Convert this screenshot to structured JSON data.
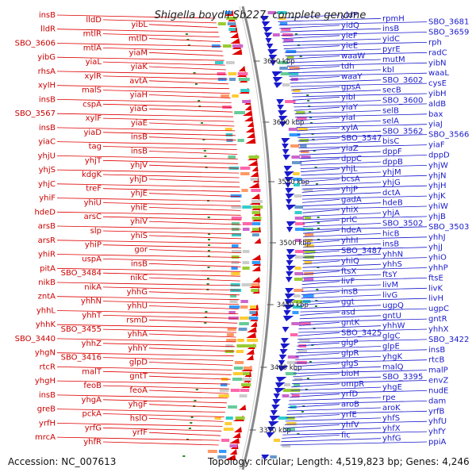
{
  "title": "Shigella boydii Sb227, complete genome",
  "footer": {
    "accession": "Accession: NC_007613",
    "summary": "Topology: circular; Length: 4,519,823 bp; Genes: 4,246"
  },
  "colors": {
    "forward": "#e00000",
    "reverse": "#1a1acc",
    "backbone": "#888888"
  },
  "kbp_labels": [
    "3650 kbp",
    "3600 kbp",
    "3550 kbp",
    "3500 kbp",
    "3450 kbp",
    "3400 kbp",
    "3350 kbp"
  ],
  "genes_left": [
    "insB",
    "lldD",
    "yibL",
    "lldR",
    "mtlR",
    "mtlD",
    "SBO_3606",
    "mtlA",
    "yiaM",
    "yibG",
    "yiaL",
    "yiaK",
    "rhsA",
    "xylR",
    "avtA",
    "xylH",
    "malS",
    "yiaH",
    "insB",
    "cspA",
    "yiaG",
    "SBO_3567",
    "xylF",
    "yiaE",
    "insB",
    "yiaD",
    "insB",
    "yiaC",
    "tag",
    "insB",
    "yhjU",
    "yhjT",
    "yhjV",
    "yhjS",
    "kdgK",
    "yhjD",
    "yhjC",
    "treF",
    "yhjE",
    "yhiF",
    "yhiU",
    "yhiE",
    "hdeD",
    "arsC",
    "yhiV",
    "arsB",
    "slp",
    "yhiS",
    "arsR",
    "yhiP",
    "gor",
    "yhiR",
    "uspA",
    "insB",
    "pitA",
    "SBO_3484",
    "nikC",
    "nikB",
    "nikA",
    "yhhG",
    "zntA",
    "yhhN",
    "yhhU",
    "yhhL",
    "yhhT",
    "rsmD",
    "yhhK",
    "SBO_3455",
    "yhhA",
    "SBO_3440",
    "yhhZ",
    "yhhY",
    "yhgN",
    "SBO_3416",
    "glpD",
    "rtcR",
    "malT",
    "gntT",
    "yhgH",
    "feoB",
    "feoA",
    "insB",
    "yhgA",
    "yhgF",
    "greB",
    "pckA",
    "hslO",
    "yrfH",
    "yrfG",
    "yrfF",
    "mrcA",
    "yhfR"
  ],
  "genes_right": [
    "yidP",
    "rpmH",
    "SBO_3681",
    "yidQ",
    "insB",
    "SBO_3659",
    "yieF",
    "yidC",
    "rph",
    "yieE",
    "pyrE",
    "radC",
    "waaW",
    "mutM",
    "yibN",
    "tdh",
    "kbl",
    "waaL",
    "waaY",
    "SBO_3602",
    "cysE",
    "gpsA",
    "secB",
    "yibH",
    "yibI",
    "SBO_3600",
    "aldB",
    "yiaY",
    "selB",
    "bax",
    "yiaI",
    "selA",
    "yiaJ",
    "xylA",
    "SBO_3562",
    "SBO_3566",
    "SBO_3547",
    "bisC",
    "yiaF",
    "yiaZ",
    "dppF",
    "dppD",
    "dppC",
    "dppB",
    "yhjW",
    "yhjL",
    "yhjM",
    "yhjN",
    "bcsA",
    "yhjG",
    "yhjH",
    "yhjP",
    "dctA",
    "yhjK",
    "gadA",
    "hdeB",
    "yhiW",
    "yhiX",
    "yhjA",
    "yhjB",
    "prlC",
    "SBO_3502",
    "SBO_3503",
    "hdeA",
    "hicB",
    "yhhJ",
    "yhhI",
    "insB",
    "yhjJ",
    "SBO_3487",
    "yhhN",
    "yhiO",
    "yhiQ",
    "yhhS",
    "yhhP",
    "ftsX",
    "ftsY",
    "ftsE",
    "livF",
    "livM",
    "livK",
    "insB",
    "livG",
    "livH",
    "ggt",
    "ugpQ",
    "ugpC",
    "asd",
    "gntU",
    "gntR",
    "gntK",
    "yhhW",
    "yhhX",
    "SBO_3425",
    "glgC",
    "SBO_3422",
    "glgP",
    "glpE",
    "insB",
    "glpR",
    "yhgK",
    "rtcB",
    "glgS",
    "malQ",
    "malP",
    "bioH",
    "SBO_3395",
    "envZ",
    "ompR",
    "yhgE",
    "nudE",
    "yrfD",
    "rpe",
    "dam",
    "aroB",
    "aroK",
    "yrfB",
    "yrfE",
    "yhfS",
    "yhfU",
    "yhfV",
    "yhfX",
    "yhfY",
    "fic",
    "yhfG",
    "ppiA"
  ]
}
